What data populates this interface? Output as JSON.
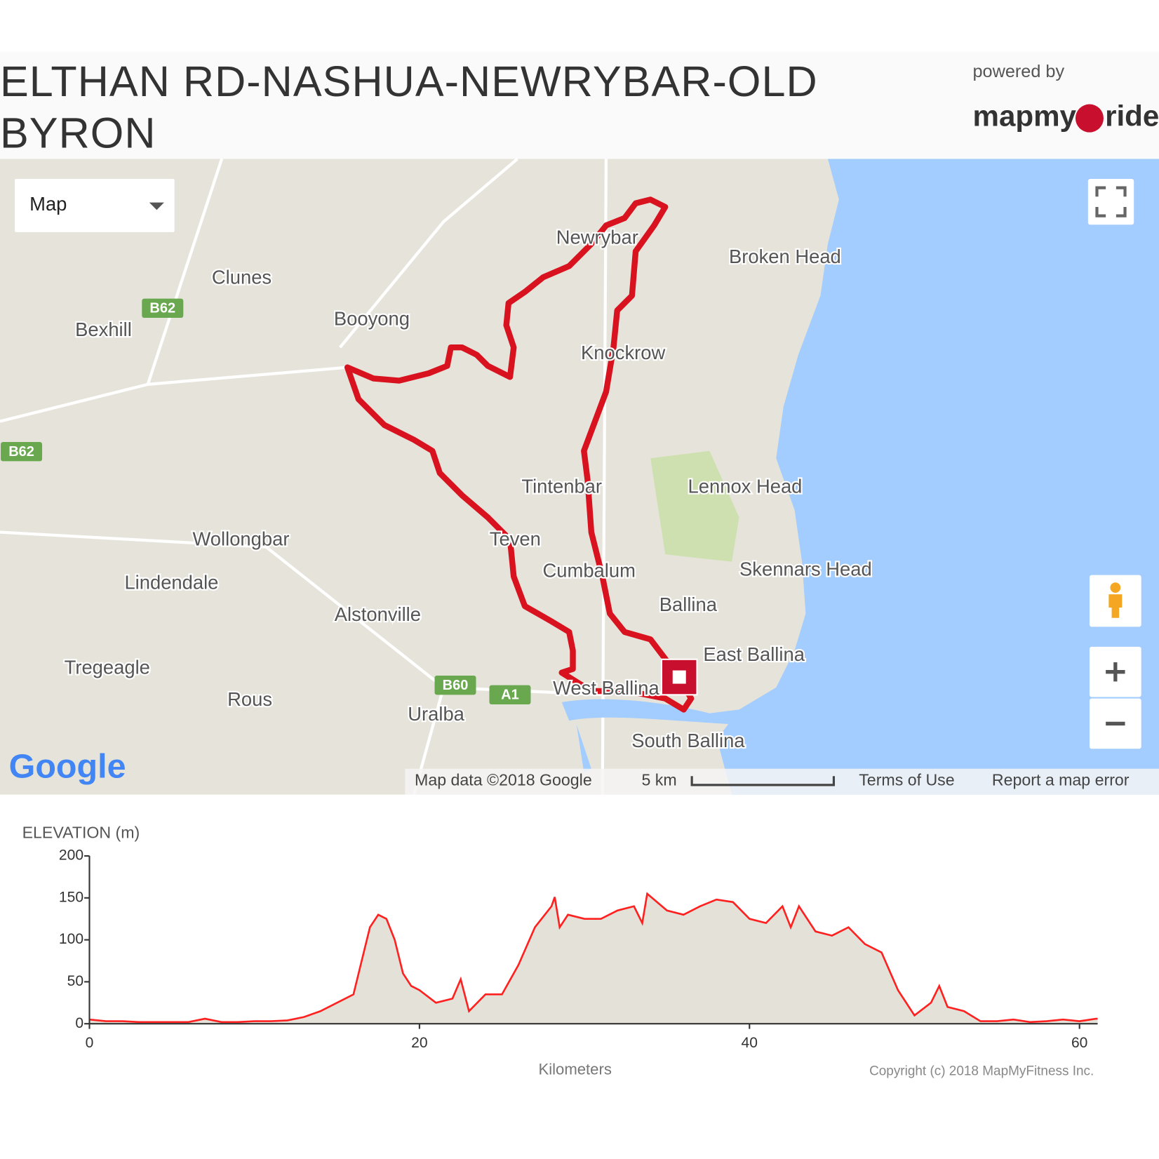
{
  "header": {
    "title": "ELTHAN RD-NASHUA-NEWRYBAR-OLD BYRON",
    "powered_by": "powered by",
    "brand_left": "mapmy",
    "brand_right": "ride"
  },
  "map": {
    "type_control": "Map",
    "places": [
      "Newrybar",
      "Broken Head",
      "Clunes",
      "Booyong",
      "Bexhill",
      "Knockrow",
      "Tintenbar",
      "Lennox Head",
      "Wollongbar",
      "Teven",
      "Cumbalum",
      "Skennars Head",
      "Lindendale",
      "Ballina",
      "Alstonville",
      "East Ballina",
      "Tregeagle",
      "Rous",
      "West Ballina",
      "Uralba",
      "South Ballina"
    ],
    "shields": [
      "B62",
      "B62",
      "B60",
      "A1"
    ],
    "logo": "Google",
    "attribution": "Map data ©2018 Google",
    "scale": "5 km",
    "terms": "Terms of Use",
    "report": "Report a map error"
  },
  "chart_data": {
    "type": "area",
    "title": "ELEVATION (m)",
    "xlabel": "Kilometers",
    "copyright": "Copyright (c) 2018 MapMyFitness Inc.",
    "xlim": [
      0,
      61.1
    ],
    "ylim": [
      0,
      200
    ],
    "xticks": [
      0,
      20,
      40,
      60
    ],
    "yticks": [
      0,
      50,
      100,
      150,
      200
    ],
    "series": [
      {
        "name": "Elevation",
        "color": "#ff2020",
        "fill": "#e4e2d8",
        "x": [
          0,
          1,
          2,
          3,
          4,
          5,
          6,
          7,
          8,
          9,
          10,
          11,
          12,
          13,
          14,
          15,
          16,
          16.5,
          17,
          17.5,
          18,
          18.5,
          19,
          19.5,
          20,
          21,
          22,
          22.5,
          23,
          24,
          25,
          26,
          27,
          28,
          28.2,
          28.5,
          29,
          30,
          31,
          32,
          33,
          33.5,
          33.8,
          35,
          36,
          37,
          38,
          39,
          40,
          41,
          42,
          42.5,
          43,
          44,
          45,
          46,
          47,
          48,
          49,
          50,
          51,
          51.5,
          52,
          53,
          54,
          55,
          56,
          57,
          58,
          59,
          60,
          61,
          61.1
        ],
        "values": [
          5,
          3,
          3,
          2,
          2,
          2,
          2,
          6,
          2,
          2,
          3,
          3,
          4,
          8,
          15,
          25,
          35,
          75,
          115,
          130,
          125,
          100,
          60,
          45,
          40,
          25,
          30,
          53,
          15,
          35,
          35,
          70,
          115,
          140,
          151,
          115,
          130,
          125,
          125,
          135,
          140,
          120,
          155,
          135,
          130,
          140,
          148,
          145,
          125,
          120,
          140,
          115,
          140,
          110,
          105,
          115,
          95,
          85,
          40,
          10,
          25,
          45,
          20,
          15,
          3,
          3,
          5,
          2,
          3,
          5,
          3,
          6,
          6
        ]
      }
    ]
  }
}
